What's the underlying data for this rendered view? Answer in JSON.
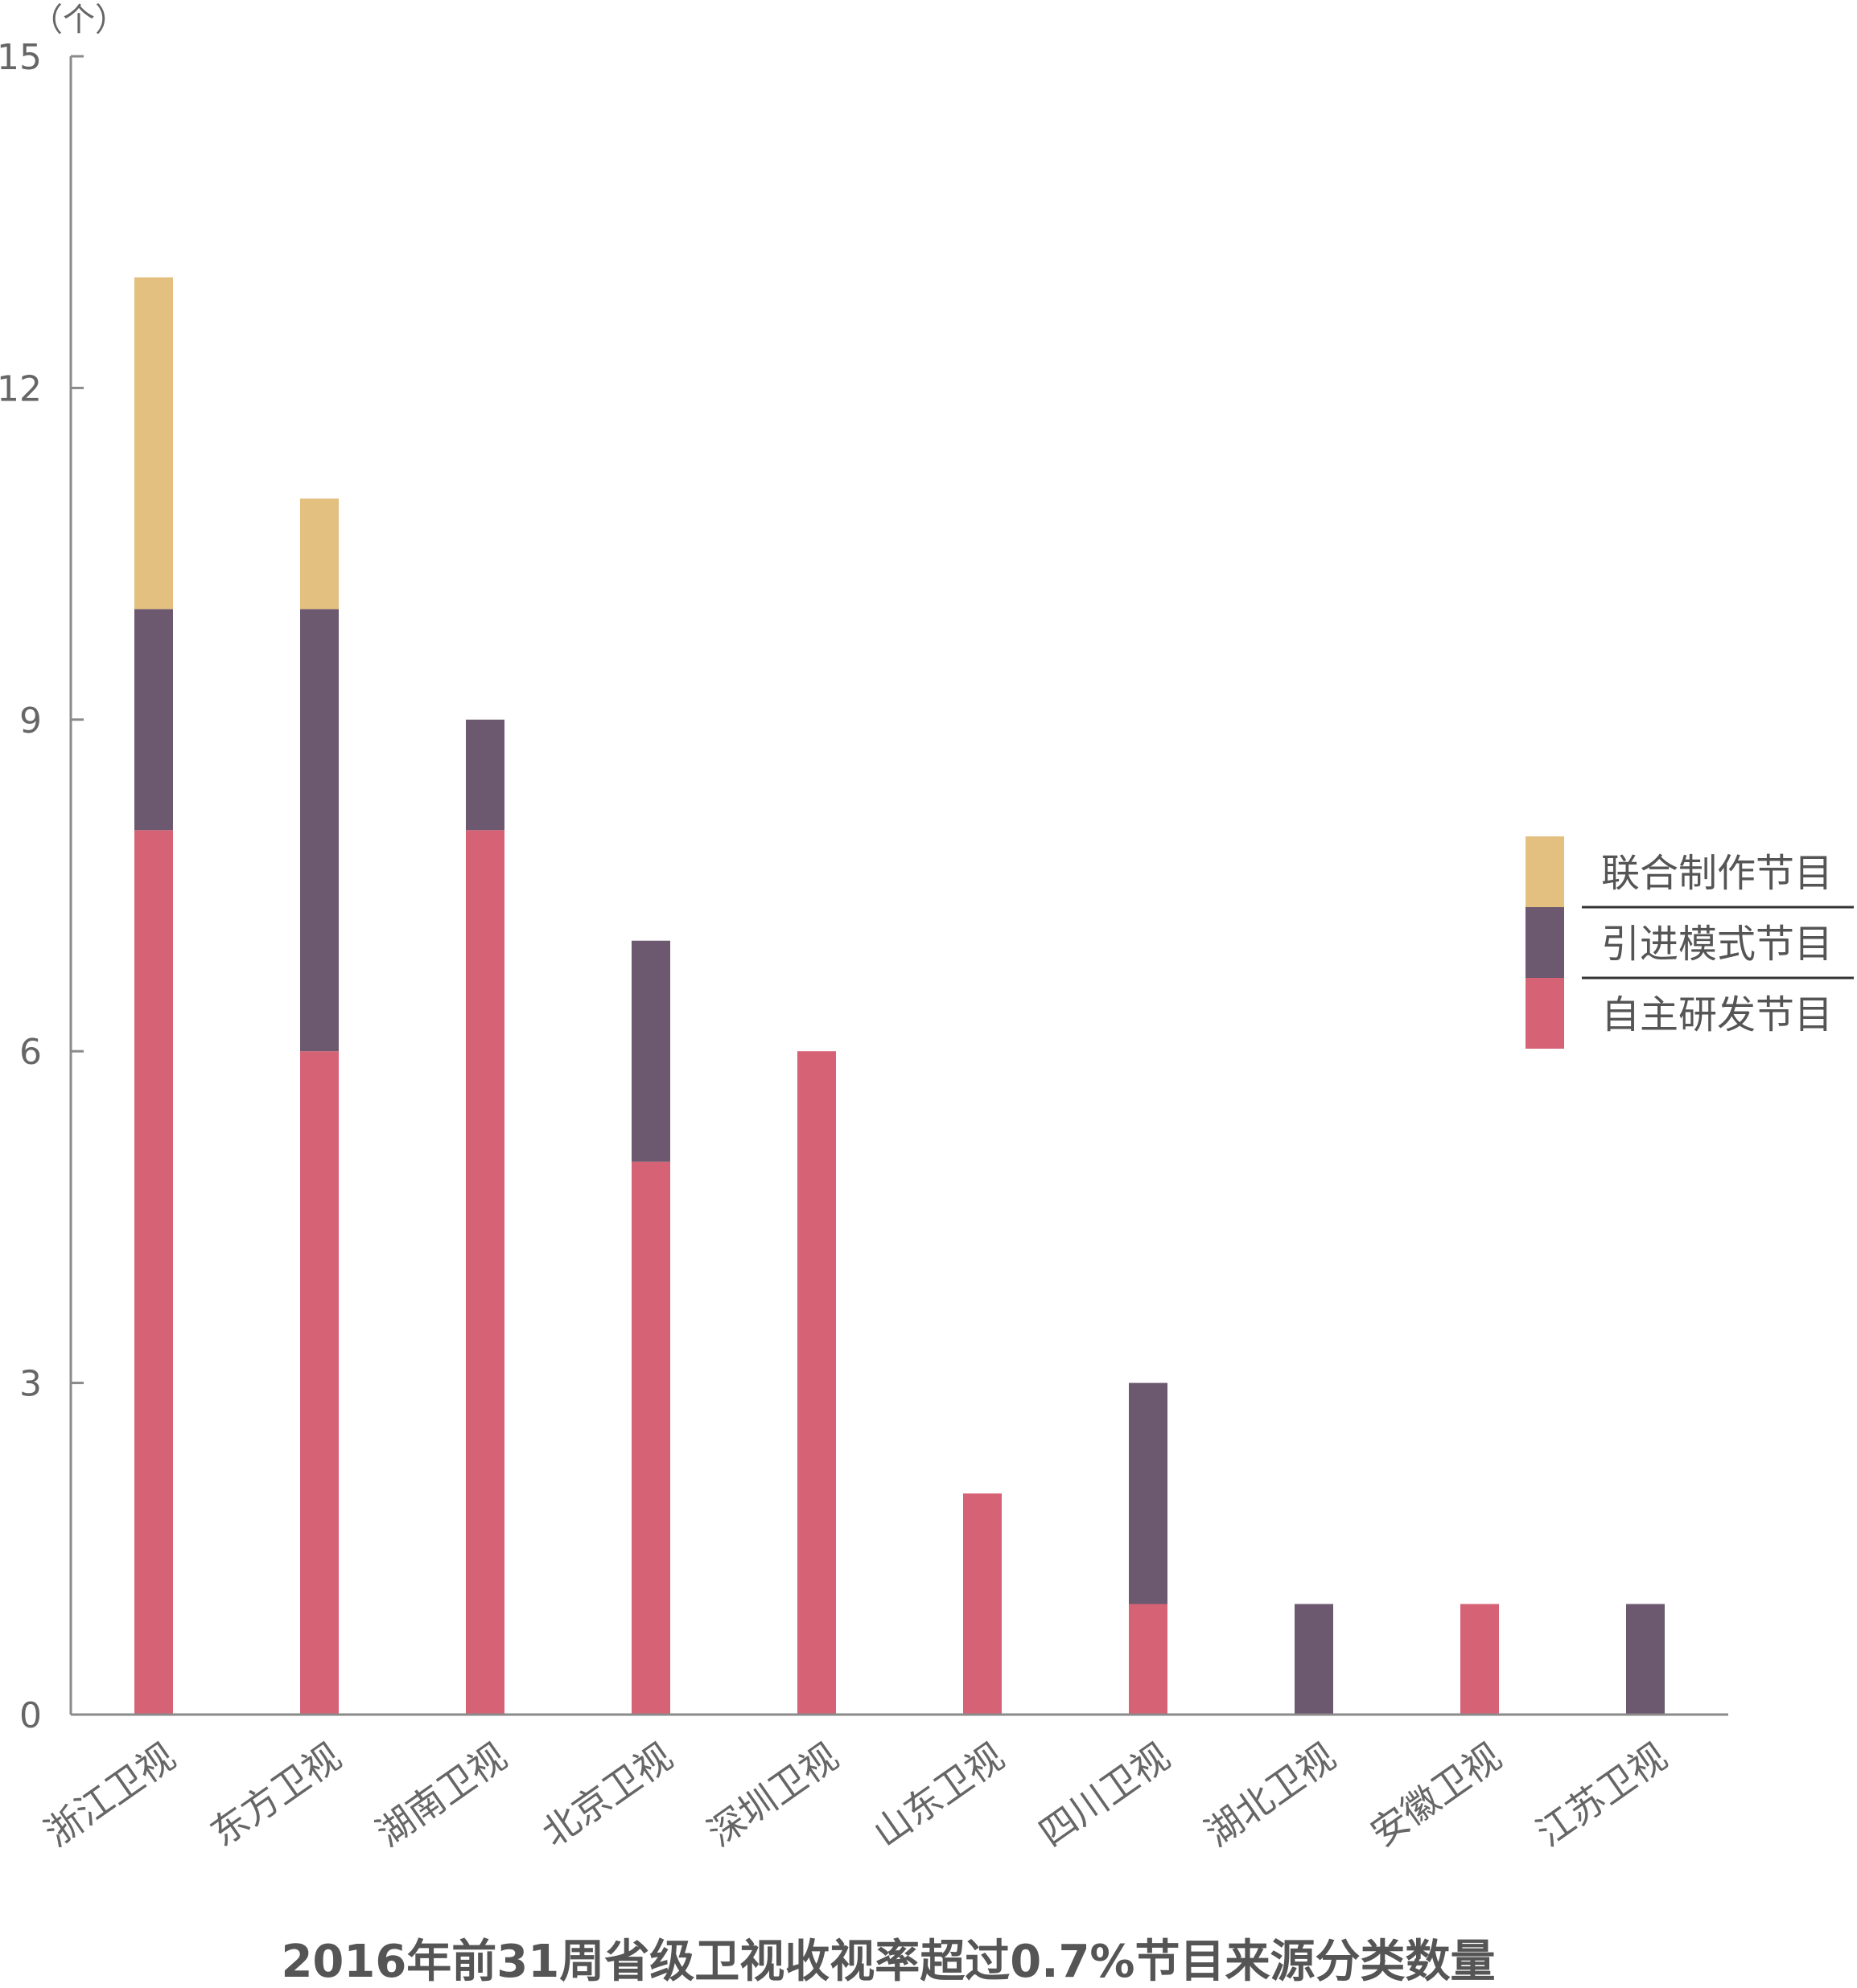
{
  "chart_data": {
    "type": "bar",
    "stacked": true,
    "title": "2016年前31周省级卫视收视率超过0.7%节目来源分类数量",
    "ylabel": "（个）",
    "xlabel": "",
    "ylim": [
      0,
      15
    ],
    "yticks": [
      0,
      3,
      6,
      9,
      12,
      15
    ],
    "grid": false,
    "legend_position": "right",
    "categories": [
      "浙江卫视",
      "东方卫视",
      "湖南卫视",
      "北京卫视",
      "深圳卫视",
      "山东卫视",
      "四川卫视",
      "湖北卫视",
      "安徽卫视",
      "江苏卫视"
    ],
    "series": [
      {
        "name": "自主研发节目",
        "color": "#d66276",
        "values": [
          8,
          6,
          8,
          5,
          6,
          2,
          1,
          0,
          1,
          0
        ]
      },
      {
        "name": "引进模式节目",
        "color": "#6c586f",
        "values": [
          2,
          4,
          1,
          2,
          0,
          0,
          2,
          1,
          0,
          1
        ]
      },
      {
        "name": "联合制作节目",
        "color": "#e3bf80",
        "values": [
          3,
          1,
          0,
          0,
          0,
          0,
          0,
          0,
          0,
          0
        ]
      }
    ],
    "legend_order": [
      "联合制作节目",
      "引进模式节目",
      "自主研发节目"
    ]
  }
}
